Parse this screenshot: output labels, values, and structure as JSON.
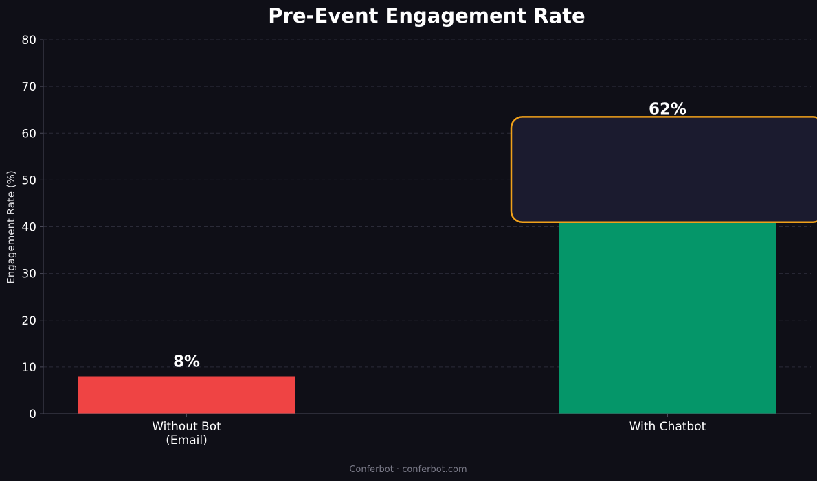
{
  "chart_data": {
    "type": "bar",
    "title": "Pre-Event Engagement Rate",
    "ylabel": "Engagement Rate (%)",
    "xlabel": "",
    "ylim": [
      0,
      80
    ],
    "yticks": [
      0,
      10,
      20,
      30,
      40,
      50,
      60,
      70,
      80
    ],
    "categories": [
      [
        "Without Bot",
        "(Email)"
      ],
      [
        "With Chatbot"
      ]
    ],
    "values": [
      8,
      62
    ],
    "value_labels": [
      "8%",
      "62%"
    ],
    "colors": [
      "#ef4444",
      "#059669"
    ],
    "grid": true,
    "highlight": {
      "category_index": 1,
      "range": [
        41,
        63.5
      ],
      "fill": "#1b1b2f",
      "border": "#f0a11a"
    }
  },
  "footer": "Conferbot · conferbot.com"
}
